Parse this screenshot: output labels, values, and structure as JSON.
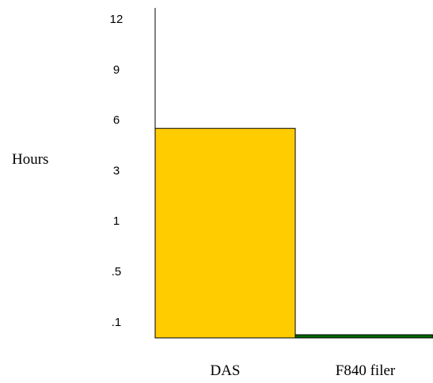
{
  "chart_data": {
    "type": "bar",
    "title": "",
    "xlabel": "",
    "ylabel": "Hours",
    "y_scale": "categorical-ordinal (non-linear tick spacing)",
    "y_ticks": [
      "12",
      "9",
      "6",
      "3",
      "1",
      ".5",
      ".1"
    ],
    "categories": [
      "DAS",
      "F840 filer"
    ],
    "values": [
      5.5,
      0.1
    ],
    "colors": [
      "#ffcc00",
      "#006600"
    ],
    "grid": false,
    "legend": "none"
  }
}
